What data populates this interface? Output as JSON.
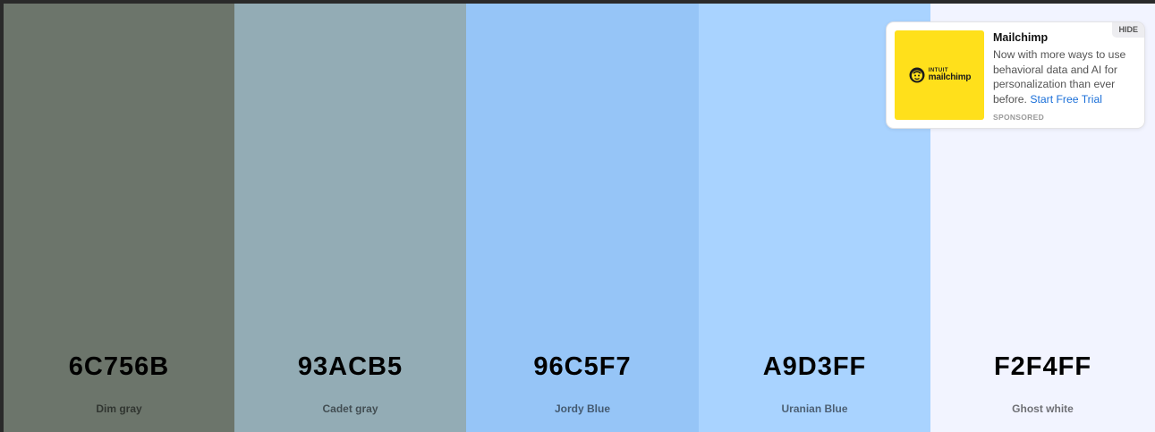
{
  "palette": {
    "swatches": [
      {
        "hex": "6C756B",
        "name": "Dim gray",
        "color": "#6C756B"
      },
      {
        "hex": "93ACB5",
        "name": "Cadet gray",
        "color": "#93ACB5"
      },
      {
        "hex": "96C5F7",
        "name": "Jordy Blue",
        "color": "#96C5F7"
      },
      {
        "hex": "A9D3FF",
        "name": "Uranian Blue",
        "color": "#A9D3FF"
      },
      {
        "hex": "F2F4FF",
        "name": "Ghost white",
        "color": "#F2F4FF"
      }
    ]
  },
  "ad": {
    "hide_label": "HIDE",
    "title": "Mailchimp",
    "text": "Now with more ways to use behavioral data and AI for personalization than ever before.",
    "cta": "Start Free Trial",
    "sponsored": "SPONSORED",
    "logo_line1": "INTUIT",
    "logo_line2": "mailchimp",
    "logo_bg": "#FFE01B",
    "logo_icon": "mailchimp-freddie-icon"
  }
}
